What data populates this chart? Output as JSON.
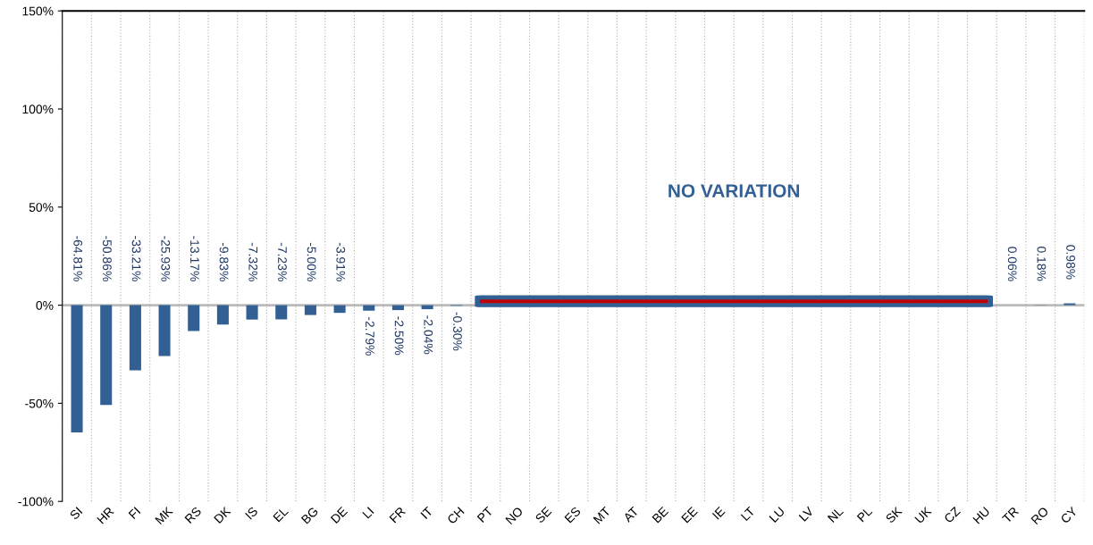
{
  "chart_data": {
    "type": "bar",
    "categories": [
      "SI",
      "HR",
      "FI",
      "MK",
      "RS",
      "DK",
      "IS",
      "EL",
      "BG",
      "DE",
      "LI",
      "FR",
      "IT",
      "CH",
      "PT",
      "NO",
      "SE",
      "ES",
      "MT",
      "AT",
      "BE",
      "EE",
      "IE",
      "LT",
      "LU",
      "LV",
      "NL",
      "PL",
      "SK",
      "UK",
      "CZ",
      "HU",
      "TR",
      "RO",
      "CY"
    ],
    "values": [
      -64.81,
      -50.86,
      -33.21,
      -25.93,
      -13.17,
      -9.83,
      -7.32,
      -7.23,
      -5.0,
      -3.91,
      -2.79,
      -2.5,
      -2.04,
      -0.3,
      0,
      0,
      0,
      0,
      0,
      0,
      0,
      0,
      0,
      0,
      0,
      0,
      0,
      0,
      0,
      0,
      0,
      0,
      0.06,
      0.18,
      0.98
    ],
    "value_labels": [
      "-64.81%",
      "-50.86%",
      "-33.21%",
      "-25.93%",
      "-13.17%",
      "-9.83%",
      "-7.32%",
      "-7.23%",
      "-5.00%",
      "-3.91%",
      "-2.79%",
      "-2.50%",
      "-2.04%",
      "-0.30%",
      null,
      null,
      null,
      null,
      null,
      null,
      null,
      null,
      null,
      null,
      null,
      null,
      null,
      null,
      null,
      null,
      null,
      null,
      "0.06%",
      "0.18%",
      "0.98%"
    ],
    "color": "#336094",
    "ylim": [
      -100,
      150
    ],
    "yticks": [
      {
        "value": -100,
        "label": "-100%"
      },
      {
        "value": -50,
        "label": "-50%"
      },
      {
        "value": 0,
        "label": "0%"
      },
      {
        "value": 50,
        "label": "50%"
      },
      {
        "value": 100,
        "label": "100%"
      },
      {
        "value": 150,
        "label": "150%"
      }
    ],
    "grid": "x",
    "annotations": [
      "NO VARIATION"
    ]
  }
}
